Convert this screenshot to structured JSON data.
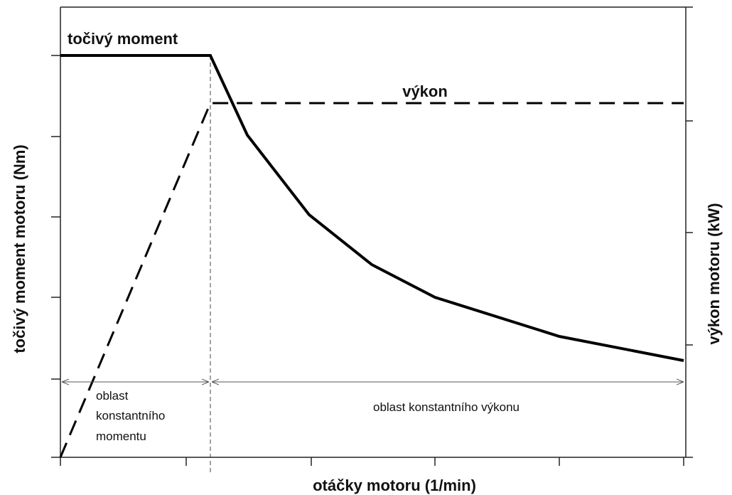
{
  "diagram": {
    "torque_label": "točivý moment",
    "power_label": "výkon",
    "y_axis_label": "točivý moment motoru (Nm)",
    "y2_axis_label": "výkon motoru (kW)",
    "x_axis_label": "otáčky motoru (1/min)",
    "constant_torque_region": [
      "oblast",
      "konstantního",
      "momentu"
    ],
    "constant_power_region": "oblast konstantního výkonu"
  }
}
